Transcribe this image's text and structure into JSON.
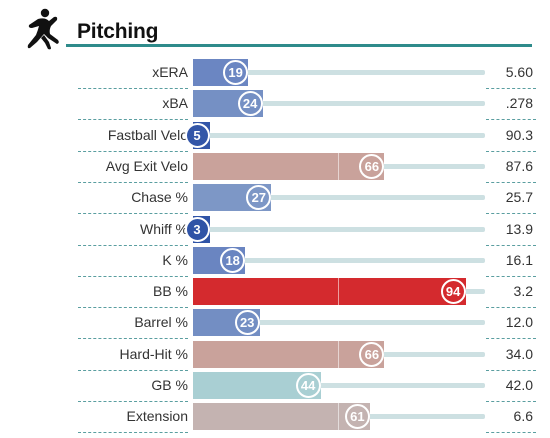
{
  "section": {
    "title": "Pitching",
    "icon": "pitcher-silhouette-icon",
    "accent_color": "#2e8b8b"
  },
  "rows": [
    {
      "label": "xERA",
      "percentile": 19,
      "value": "5.60",
      "color": "#6b86c2"
    },
    {
      "label": "xBA",
      "percentile": 24,
      "value": ".278",
      "color": "#7590c4"
    },
    {
      "label": "Fastball Velo",
      "percentile": 5,
      "value": "90.3",
      "color": "#3356a8"
    },
    {
      "label": "Avg Exit Velo",
      "percentile": 66,
      "value": "87.6",
      "color": "#c9a29b"
    },
    {
      "label": "Chase %",
      "percentile": 27,
      "value": "25.7",
      "color": "#7d97c6"
    },
    {
      "label": "Whiff %",
      "percentile": 3,
      "value": "13.9",
      "color": "#2f53a6"
    },
    {
      "label": "K %",
      "percentile": 18,
      "value": "16.1",
      "color": "#6a85c1"
    },
    {
      "label": "BB %",
      "percentile": 94,
      "value": "3.2",
      "color": "#d42a2e"
    },
    {
      "label": "Barrel %",
      "percentile": 23,
      "value": "12.0",
      "color": "#738ec3"
    },
    {
      "label": "Hard-Hit %",
      "percentile": 66,
      "value": "34.0",
      "color": "#c9a29b"
    },
    {
      "label": "GB %",
      "percentile": 44,
      "value": "42.0",
      "color": "#a9cfd3"
    },
    {
      "label": "Extension",
      "percentile": 61,
      "value": "6.6",
      "color": "#c4b3b1"
    }
  ]
}
